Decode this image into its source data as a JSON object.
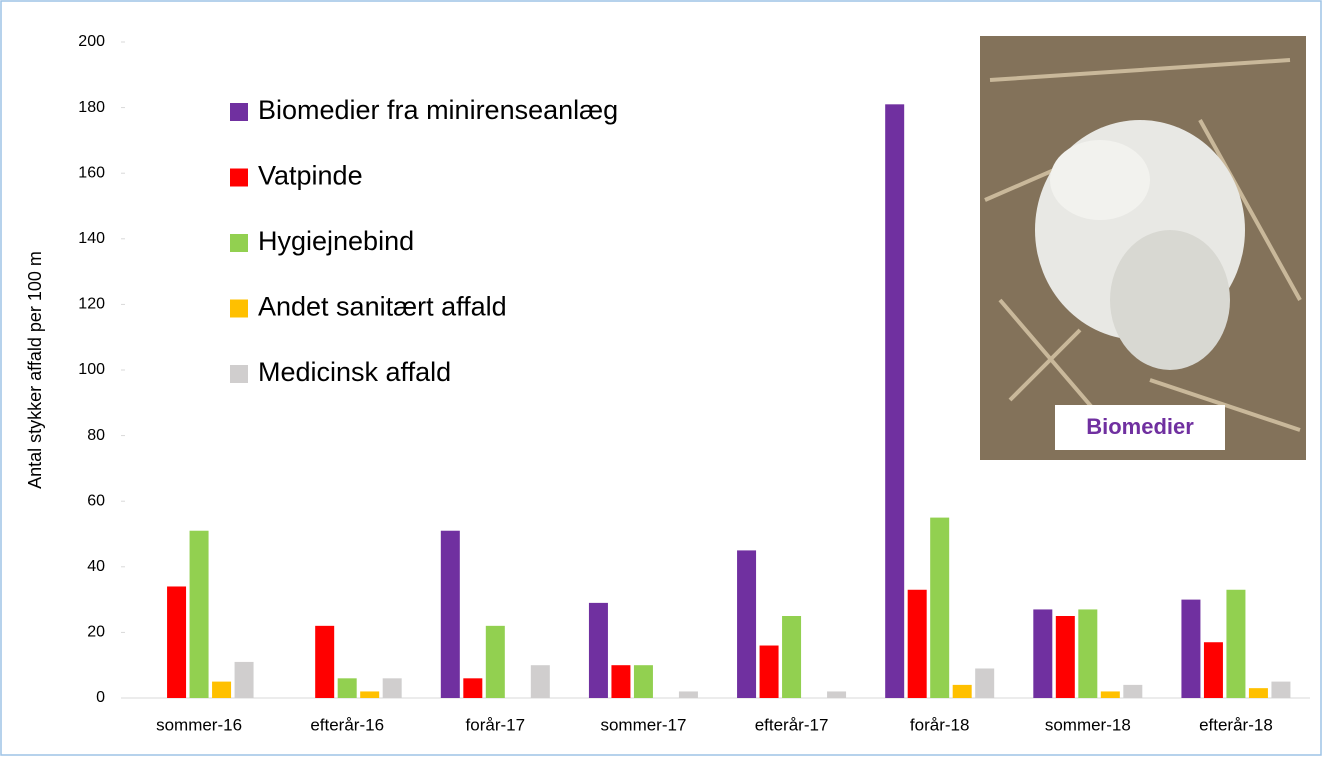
{
  "chart_data": {
    "type": "bar",
    "y_label": "Antal stykker affald per 100 m",
    "categories": [
      "sommer-16",
      "efterår-16",
      "forår-17",
      "sommer-17",
      "efterår-17",
      "forår-18",
      "sommer-18",
      "efterår-18"
    ],
    "series": [
      {
        "name": "Biomedier fra minirenseanlæg",
        "color": "#7030a0",
        "values": [
          0,
          0,
          51,
          29,
          45,
          181,
          27,
          30
        ]
      },
      {
        "name": "Vatpinde",
        "color": "#ff0000",
        "values": [
          34,
          22,
          6,
          10,
          16,
          33,
          25,
          17
        ]
      },
      {
        "name": "Hygiejnebind",
        "color": "#92d050",
        "values": [
          51,
          6,
          22,
          10,
          25,
          55,
          27,
          33
        ]
      },
      {
        "name": "Andet sanitært affald",
        "color": "#ffc000",
        "values": [
          5,
          2,
          0,
          0,
          0,
          4,
          2,
          3
        ]
      },
      {
        "name": "Medicinsk affald",
        "color": "#d0cece",
        "values": [
          11,
          6,
          10,
          2,
          2,
          9,
          4,
          5
        ]
      }
    ],
    "ylim": [
      0,
      200
    ],
    "yticks": [
      0,
      20,
      40,
      60,
      80,
      100,
      120,
      140,
      160,
      180,
      200
    ],
    "annotation": "Biomedier"
  }
}
